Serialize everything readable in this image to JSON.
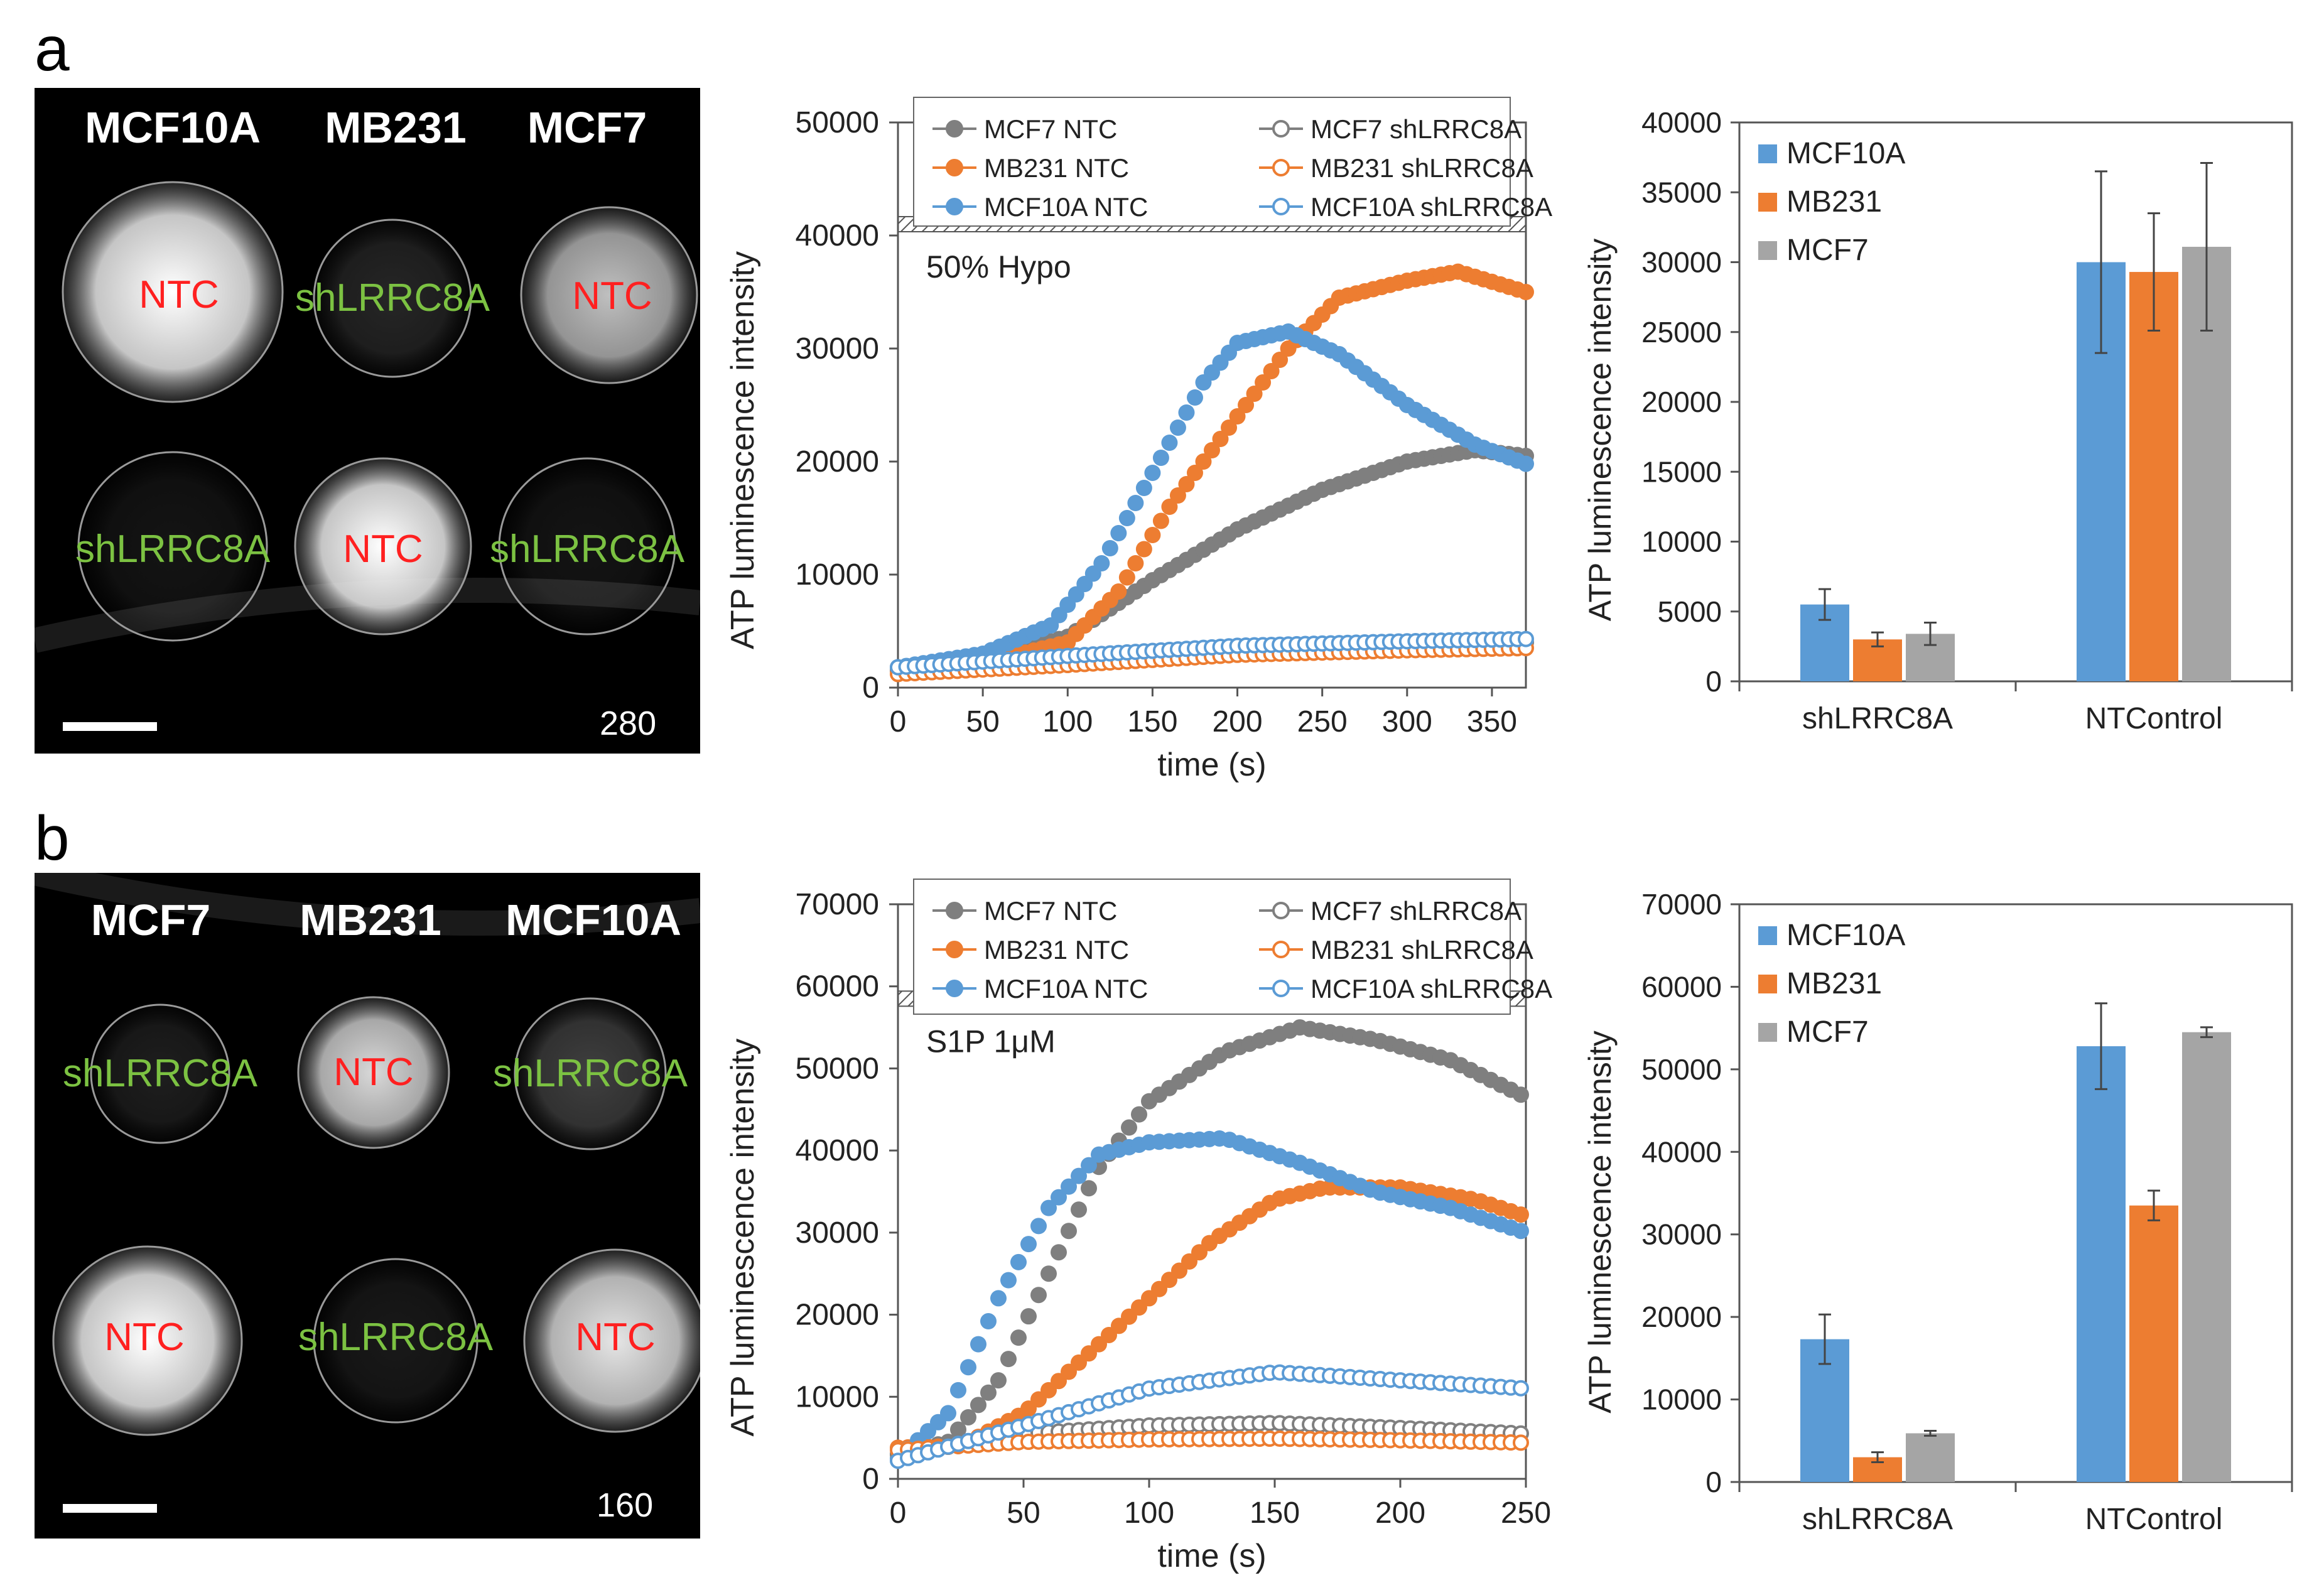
{
  "panels": [
    {
      "letter": "a",
      "micro": {
        "cell_names": [
          "MCF10A",
          "MB231",
          "MCF7"
        ],
        "wells": [
          {
            "label": "NTC",
            "type": "ntc",
            "intensity": 1.0
          },
          {
            "label": "shLRRC8A",
            "type": "sh",
            "intensity": 0.15
          },
          {
            "label": "NTC",
            "type": "ntc",
            "intensity": 0.75
          },
          {
            "label": "shLRRC8A",
            "type": "sh",
            "intensity": 0.08
          },
          {
            "label": "NTC",
            "type": "ntc",
            "intensity": 1.0
          },
          {
            "label": "shLRRC8A",
            "type": "sh",
            "intensity": 0.08
          }
        ],
        "frame_number": "280"
      },
      "line_chart": {
        "type": "scatter",
        "xlabel": "time (s)",
        "ylabel": "ATP luminescence intensity",
        "xlim": [
          0,
          370
        ],
        "ylim": [
          0,
          50000
        ],
        "xticks": [
          0,
          50,
          100,
          150,
          200,
          250,
          300,
          350
        ],
        "yticks": [
          0,
          10000,
          20000,
          30000,
          40000,
          50000
        ],
        "stim_label": "50% Hypo",
        "stim_y": 41000,
        "legend": [
          {
            "name": "MCF7    NTC",
            "color": "#7f7f7f",
            "filled": true
          },
          {
            "name": "MCF7      shLRRC8A",
            "color": "#7f7f7f",
            "filled": false
          },
          {
            "name": "MB231    NTC",
            "color": "#ed7d31",
            "filled": true
          },
          {
            "name": "MB231    shLRRC8A",
            "color": "#ed7d31",
            "filled": false
          },
          {
            "name": "MCF10A NTC",
            "color": "#5b9bd5",
            "filled": true
          },
          {
            "name": "MCF10A shLRRC8A",
            "color": "#5b9bd5",
            "filled": false
          }
        ],
        "series": [
          {
            "color": "#7f7f7f",
            "filled": true,
            "points": [
              [
                0,
                1800
              ],
              [
                50,
                2500
              ],
              [
                100,
                4500
              ],
              [
                150,
                9500
              ],
              [
                200,
                14000
              ],
              [
                250,
                17500
              ],
              [
                300,
                20000
              ],
              [
                340,
                21000
              ],
              [
                370,
                20500
              ]
            ]
          },
          {
            "color": "#ed7d31",
            "filled": true,
            "points": [
              [
                0,
                1500
              ],
              [
                50,
                2200
              ],
              [
                100,
                4000
              ],
              [
                130,
                8500
              ],
              [
                160,
                16000
              ],
              [
                200,
                24000
              ],
              [
                230,
                30000
              ],
              [
                260,
                34500
              ],
              [
                300,
                36000
              ],
              [
                330,
                36800
              ],
              [
                370,
                35000
              ]
            ]
          },
          {
            "color": "#5b9bd5",
            "filled": true,
            "points": [
              [
                0,
                1800
              ],
              [
                50,
                3000
              ],
              [
                90,
                5500
              ],
              [
                120,
                11000
              ],
              [
                150,
                19000
              ],
              [
                180,
                27000
              ],
              [
                200,
                30500
              ],
              [
                230,
                31500
              ],
              [
                260,
                29500
              ],
              [
                300,
                25000
              ],
              [
                340,
                21500
              ],
              [
                370,
                19800
              ]
            ]
          },
          {
            "color": "#7f7f7f",
            "filled": false,
            "points": [
              [
                0,
                1500
              ],
              [
                100,
                2500
              ],
              [
                200,
                3400
              ],
              [
                300,
                3800
              ],
              [
                370,
                4000
              ]
            ]
          },
          {
            "color": "#ed7d31",
            "filled": false,
            "points": [
              [
                0,
                1200
              ],
              [
                100,
                2000
              ],
              [
                200,
                2900
              ],
              [
                300,
                3300
              ],
              [
                370,
                3500
              ]
            ]
          },
          {
            "color": "#5b9bd5",
            "filled": false,
            "points": [
              [
                0,
                1800
              ],
              [
                100,
                2800
              ],
              [
                200,
                3700
              ],
              [
                300,
                4100
              ],
              [
                370,
                4300
              ]
            ]
          }
        ]
      },
      "bar_chart": {
        "type": "bar",
        "categories": [
          "shLRRC8A",
          "NTControl"
        ],
        "ylabel": "ATP luminescence intensity",
        "ylim": [
          0,
          40000
        ],
        "yticks": [
          0,
          5000,
          10000,
          15000,
          20000,
          25000,
          30000,
          35000,
          40000
        ],
        "series": [
          {
            "name": "MCF10A",
            "color": "#5b9bd5",
            "values": [
              5500,
              30000
            ],
            "errors": [
              1100,
              6500
            ]
          },
          {
            "name": "MB231",
            "color": "#ed7d31",
            "values": [
              3000,
              29300
            ],
            "errors": [
              500,
              4200
            ]
          },
          {
            "name": "MCF7",
            "color": "#a5a5a5",
            "values": [
              3400,
              31100
            ],
            "errors": [
              800,
              6000
            ]
          }
        ]
      }
    },
    {
      "letter": "b",
      "micro": {
        "cell_names": [
          "MCF7",
          "MB231",
          "MCF10A"
        ],
        "wells": [
          {
            "label": "shLRRC8A",
            "type": "sh",
            "intensity": 0.12
          },
          {
            "label": "NTC",
            "type": "ntc",
            "intensity": 0.85
          },
          {
            "label": "shLRRC8A",
            "type": "sh",
            "intensity": 0.25
          },
          {
            "label": "NTC",
            "type": "ntc",
            "intensity": 1.0
          },
          {
            "label": "shLRRC8A",
            "type": "sh",
            "intensity": 0.1
          },
          {
            "label": "NTC",
            "type": "ntc",
            "intensity": 0.9
          }
        ],
        "frame_number": "160"
      },
      "line_chart": {
        "type": "scatter",
        "xlabel": "time (s)",
        "ylabel": "ATP luminescence intensity",
        "xlim": [
          0,
          250
        ],
        "ylim": [
          0,
          70000
        ],
        "xticks": [
          0,
          50,
          100,
          150,
          200,
          250
        ],
        "yticks": [
          0,
          10000,
          20000,
          30000,
          40000,
          50000,
          60000,
          70000
        ],
        "stim_label": "S1P 1μM",
        "stim_y": 58500,
        "legend": [
          {
            "name": "MCF7      NTC",
            "color": "#7f7f7f",
            "filled": true
          },
          {
            "name": "MCF7      shLRRC8A",
            "color": "#7f7f7f",
            "filled": false
          },
          {
            "name": "MB231    NTC",
            "color": "#ed7d31",
            "filled": true
          },
          {
            "name": "MB231    shLRRC8A",
            "color": "#ed7d31",
            "filled": false
          },
          {
            "name": "MCF10A NTC",
            "color": "#5b9bd5",
            "filled": true
          },
          {
            "name": "MCF10A shLRRC8A",
            "color": "#5b9bd5",
            "filled": false
          }
        ],
        "series": [
          {
            "color": "#7f7f7f",
            "filled": true,
            "points": [
              [
                0,
                3000
              ],
              [
                20,
                4500
              ],
              [
                40,
                12000
              ],
              [
                60,
                25000
              ],
              [
                80,
                38000
              ],
              [
                100,
                46000
              ],
              [
                130,
                52000
              ],
              [
                160,
                55000
              ],
              [
                190,
                53500
              ],
              [
                220,
                51000
              ],
              [
                250,
                46500
              ]
            ]
          },
          {
            "color": "#ed7d31",
            "filled": true,
            "points": [
              [
                0,
                3800
              ],
              [
                25,
                4000
              ],
              [
                50,
                8000
              ],
              [
                75,
                15000
              ],
              [
                100,
                22000
              ],
              [
                125,
                29000
              ],
              [
                150,
                34000
              ],
              [
                170,
                35500
              ],
              [
                200,
                35500
              ],
              [
                230,
                34000
              ],
              [
                250,
                32000
              ]
            ]
          },
          {
            "color": "#5b9bd5",
            "filled": true,
            "points": [
              [
                0,
                2500
              ],
              [
                20,
                8000
              ],
              [
                40,
                22000
              ],
              [
                60,
                33000
              ],
              [
                80,
                39500
              ],
              [
                100,
                41000
              ],
              [
                130,
                41500
              ],
              [
                160,
                38500
              ],
              [
                190,
                35000
              ],
              [
                220,
                33000
              ],
              [
                250,
                30000
              ]
            ]
          },
          {
            "color": "#7f7f7f",
            "filled": false,
            "points": [
              [
                0,
                3000
              ],
              [
                50,
                5500
              ],
              [
                100,
                6500
              ],
              [
                150,
                6800
              ],
              [
                200,
                6200
              ],
              [
                250,
                5500
              ]
            ]
          },
          {
            "color": "#ed7d31",
            "filled": false,
            "points": [
              [
                0,
                3500
              ],
              [
                50,
                4500
              ],
              [
                100,
                4800
              ],
              [
                150,
                4900
              ],
              [
                200,
                4700
              ],
              [
                250,
                4400
              ]
            ]
          },
          {
            "color": "#5b9bd5",
            "filled": false,
            "points": [
              [
                0,
                2200
              ],
              [
                50,
                6500
              ],
              [
                100,
                11000
              ],
              [
                150,
                13000
              ],
              [
                200,
                12000
              ],
              [
                250,
                11000
              ]
            ]
          }
        ]
      },
      "bar_chart": {
        "type": "bar",
        "categories": [
          "shLRRC8A",
          "NTControl"
        ],
        "ylabel": "ATP luminescence intensity",
        "ylim": [
          0,
          70000
        ],
        "yticks": [
          0,
          10000,
          20000,
          30000,
          40000,
          50000,
          60000,
          70000
        ],
        "series": [
          {
            "name": "MCF10A",
            "color": "#5b9bd5",
            "values": [
              17300,
              52800
            ],
            "errors": [
              3000,
              5200
            ]
          },
          {
            "name": "MB231",
            "color": "#ed7d31",
            "values": [
              3000,
              33500
            ],
            "errors": [
              600,
              1800
            ]
          },
          {
            "name": "MCF7",
            "color": "#a5a5a5",
            "values": [
              5900,
              54500
            ],
            "errors": [
              300,
              600
            ]
          }
        ]
      }
    }
  ]
}
